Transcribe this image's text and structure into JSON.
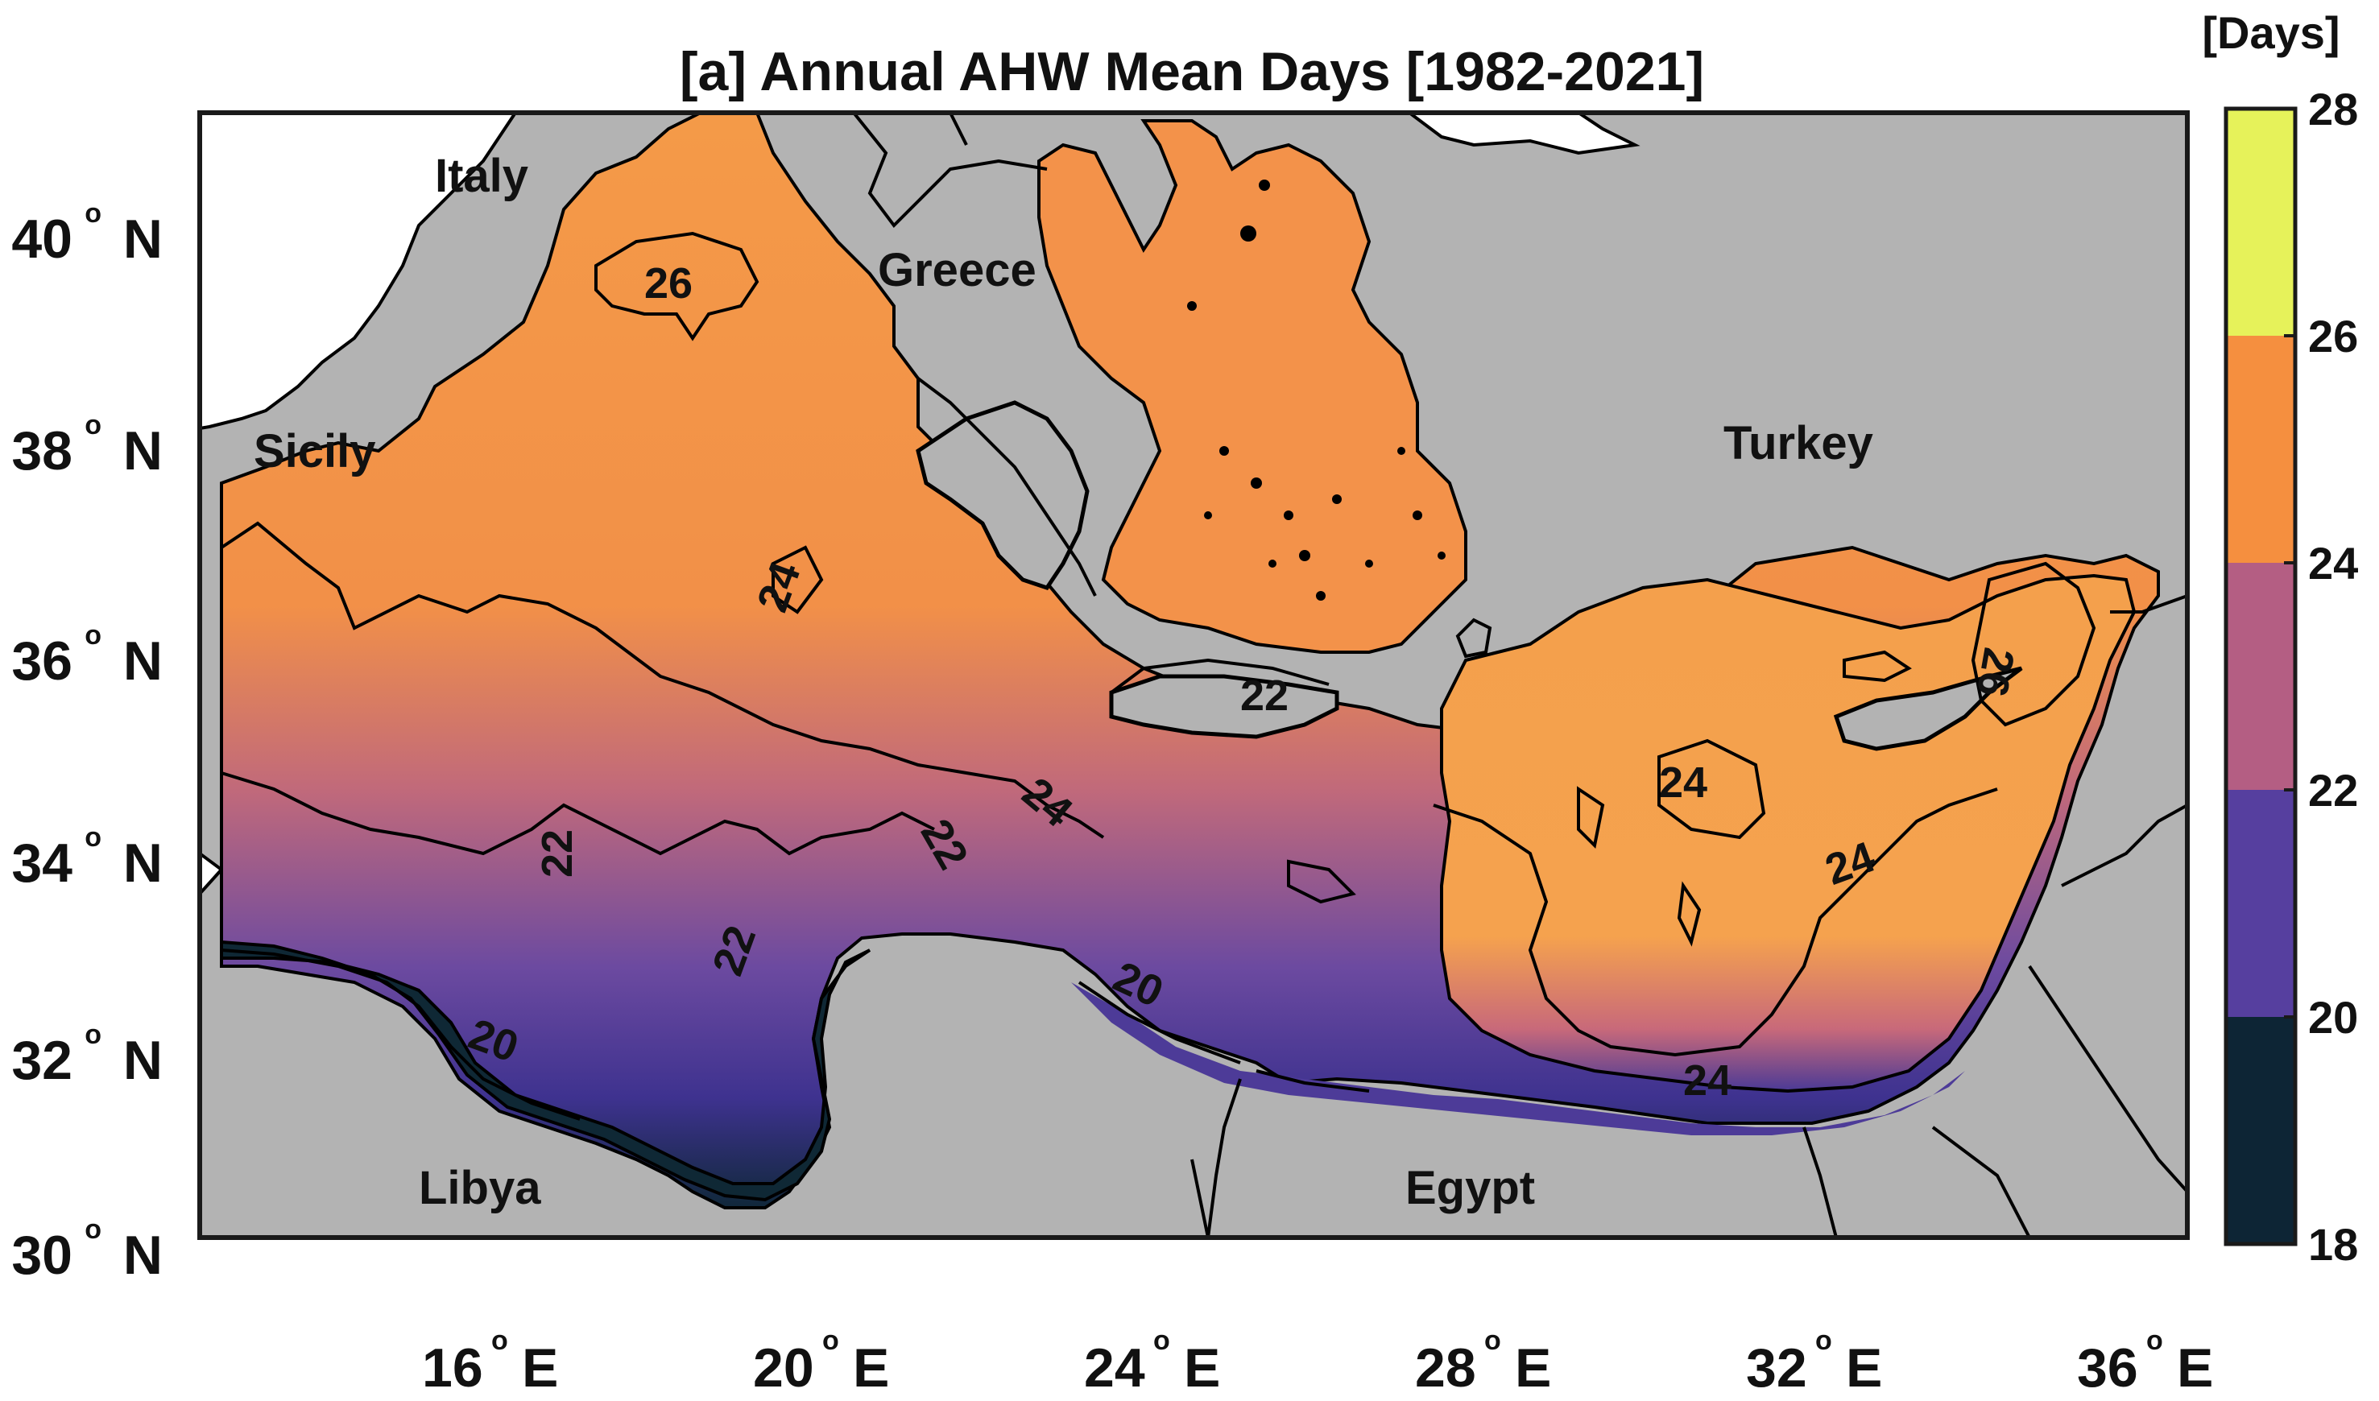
{
  "title": "[a]  Annual AHW Mean Days [1982-2021]",
  "colors": {
    "land": "#b3b3b3",
    "sea_high": "#f6a44f",
    "sea_mid": "#b5607c",
    "sea_low": "#4a3a9c",
    "sea_min": "#0f2630",
    "frame": "#1a1a1a"
  },
  "map": {
    "lon_range": [
      12.5,
      36.5
    ],
    "lat_range": [
      30,
      41.2
    ],
    "x_ticks": [
      {
        "num": "16",
        "hem": "E"
      },
      {
        "num": "20",
        "hem": "E"
      },
      {
        "num": "24",
        "hem": "E"
      },
      {
        "num": "28",
        "hem": "E"
      },
      {
        "num": "32",
        "hem": "E"
      },
      {
        "num": "36",
        "hem": "E"
      }
    ],
    "y_ticks": [
      {
        "num": "40",
        "hem": "N"
      },
      {
        "num": "38",
        "hem": "N"
      },
      {
        "num": "36",
        "hem": "N"
      },
      {
        "num": "34",
        "hem": "N"
      },
      {
        "num": "32",
        "hem": "N"
      },
      {
        "num": "30",
        "hem": "N"
      }
    ],
    "degree_symbol": "o",
    "countries": [
      "Italy",
      "Greece",
      "Sicily",
      "Turkey",
      "Libya",
      "Egypt"
    ],
    "contour_labels": [
      "26",
      "24",
      "24",
      "24",
      "24",
      "22",
      "22",
      "22",
      "22",
      "20",
      "20",
      "26",
      "24"
    ]
  },
  "colorbar": {
    "unit": "[Days]",
    "ticks": [
      "28",
      "26",
      "24",
      "22",
      "20",
      "18"
    ],
    "bands": [
      {
        "from": 26,
        "to": 28,
        "color": "#e6f25a"
      },
      {
        "from": 24,
        "to": 26,
        "color": "#f58f3f"
      },
      {
        "from": 22,
        "to": 24,
        "color": "#b45e83"
      },
      {
        "from": 20,
        "to": 22,
        "color": "#563f9f"
      },
      {
        "from": 18,
        "to": 20,
        "color": "#0d2535"
      }
    ]
  }
}
